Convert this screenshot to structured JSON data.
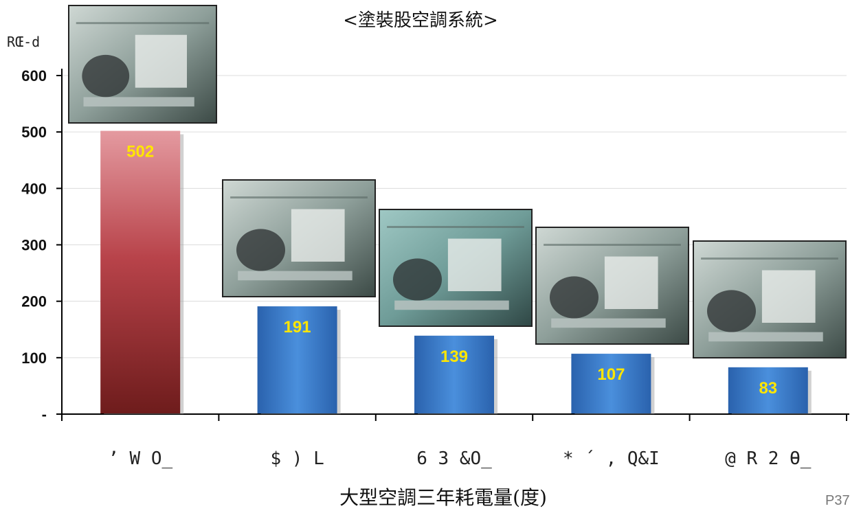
{
  "chart_data": {
    "type": "bar",
    "title": "<塗裝股空調系統>",
    "ylabel": "RŒ-d",
    "xlabel": "大型空調三年耗電量(度)",
    "categories": [
      "’ W O_",
      "$ ) L",
      "6 3 &O_",
      "* ´ , Q&I",
      "@ R 2 Ɵ_"
    ],
    "values": [
      502,
      191,
      139,
      107,
      83
    ],
    "value_labels": [
      "502",
      "191",
      "139",
      "107",
      "83"
    ],
    "ylim": [
      0,
      600
    ],
    "yticks": [
      0,
      100,
      200,
      300,
      400,
      500,
      600
    ],
    "ytick_labels": [
      "-",
      "100",
      "200",
      "300",
      "400",
      "500",
      "600"
    ],
    "grid": true,
    "bar_colors": [
      "#b8434a",
      "#2e6fc0",
      "#2e6fc0",
      "#2e6fc0",
      "#2e6fc0"
    ]
  },
  "page_number": "P37"
}
